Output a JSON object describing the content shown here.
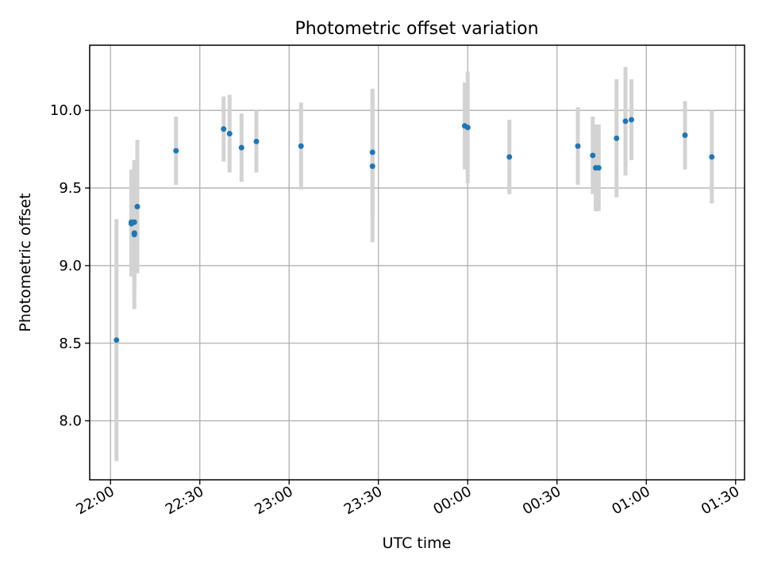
{
  "chart_data": {
    "type": "scatter",
    "title": "Photometric offset variation",
    "xlabel": "UTC time",
    "ylabel": "Photometric offset",
    "grid": true,
    "ylim": [
      7.62,
      10.42
    ],
    "xlim": [
      "21:53",
      "01:33"
    ],
    "y_ticks": [
      {
        "value": 8.0,
        "label": "8.0"
      },
      {
        "value": 8.5,
        "label": "8.5"
      },
      {
        "value": 9.0,
        "label": "9.0"
      },
      {
        "value": 9.5,
        "label": "9.5"
      },
      {
        "value": 10.0,
        "label": "10.0"
      }
    ],
    "x_ticks": [
      {
        "value": "22:00",
        "label": "22:00"
      },
      {
        "value": "22:30",
        "label": "22:30"
      },
      {
        "value": "23:00",
        "label": "23:00"
      },
      {
        "value": "23:30",
        "label": "23:30"
      },
      {
        "value": "00:00",
        "label": "00:00"
      },
      {
        "value": "00:30",
        "label": "00:30"
      },
      {
        "value": "01:00",
        "label": "01:00"
      },
      {
        "value": "01:30",
        "label": "01:30"
      }
    ],
    "colors": {
      "points": "#1f77b4",
      "errorbars": "#d3d3d3",
      "grid": "#b0b0b0"
    },
    "points": [
      {
        "time": "22:02",
        "y": 8.52,
        "err": 0.78
      },
      {
        "time": "22:07",
        "y": 9.28,
        "err": 0.34
      },
      {
        "time": "22:07",
        "y": 9.27,
        "err": 0.34
      },
      {
        "time": "22:08",
        "y": 9.2,
        "err": 0.48
      },
      {
        "time": "22:08",
        "y": 9.28,
        "err": 0.4
      },
      {
        "time": "22:08",
        "y": 9.21,
        "err": 0.4
      },
      {
        "time": "22:09",
        "y": 9.38,
        "err": 0.43
      },
      {
        "time": "22:22",
        "y": 9.74,
        "err": 0.22
      },
      {
        "time": "22:38",
        "y": 9.88,
        "err": 0.21
      },
      {
        "time": "22:40",
        "y": 9.85,
        "err": 0.25
      },
      {
        "time": "22:44",
        "y": 9.76,
        "err": 0.22
      },
      {
        "time": "22:49",
        "y": 9.8,
        "err": 0.2
      },
      {
        "time": "23:04",
        "y": 9.77,
        "err": 0.28
      },
      {
        "time": "23:28",
        "y": 9.73,
        "err": 0.41
      },
      {
        "time": "23:28",
        "y": 9.64,
        "err": 0.49
      },
      {
        "time": "23:59",
        "y": 9.9,
        "err": 0.28
      },
      {
        "time": "00:00",
        "y": 9.89,
        "err": 0.36
      },
      {
        "time": "00:14",
        "y": 9.7,
        "err": 0.24
      },
      {
        "time": "00:37",
        "y": 9.77,
        "err": 0.25
      },
      {
        "time": "00:42",
        "y": 9.71,
        "err": 0.25
      },
      {
        "time": "00:43",
        "y": 9.63,
        "err": 0.28
      },
      {
        "time": "00:44",
        "y": 9.63,
        "err": 0.28
      },
      {
        "time": "00:50",
        "y": 9.82,
        "err": 0.38
      },
      {
        "time": "00:53",
        "y": 9.93,
        "err": 0.35
      },
      {
        "time": "00:55",
        "y": 9.94,
        "err": 0.26
      },
      {
        "time": "01:13",
        "y": 9.84,
        "err": 0.22
      },
      {
        "time": "01:22",
        "y": 9.7,
        "err": 0.3
      }
    ]
  }
}
